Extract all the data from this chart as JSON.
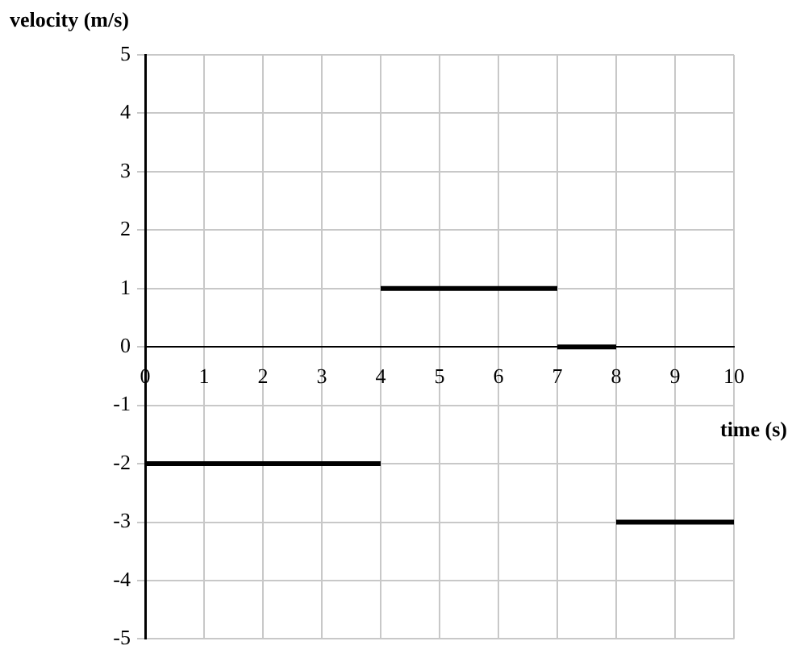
{
  "chart_data": {
    "type": "line",
    "xlabel": "time (s)",
    "ylabel": "velocity (m/s)",
    "xlim": [
      0,
      10
    ],
    "xticks": [
      0,
      1,
      2,
      3,
      4,
      5,
      6,
      7,
      8,
      9,
      10
    ],
    "ylim": [
      -5,
      5
    ],
    "yticks": [
      -5,
      -4,
      -3,
      -2,
      -1,
      0,
      1,
      2,
      3,
      4,
      5
    ],
    "grid": true,
    "legend": false,
    "marker": "none",
    "line_style": "solid",
    "series": [
      {
        "color": "#000000",
        "x": [
          0,
          4
        ],
        "values": [
          -2,
          -2
        ]
      },
      {
        "color": "#000000",
        "x": [
          4,
          7
        ],
        "values": [
          1,
          1
        ]
      },
      {
        "color": "#000000",
        "x": [
          7,
          8
        ],
        "values": [
          0,
          0
        ]
      },
      {
        "color": "#000000",
        "x": [
          8,
          10
        ],
        "values": [
          -3,
          -3
        ]
      }
    ]
  }
}
